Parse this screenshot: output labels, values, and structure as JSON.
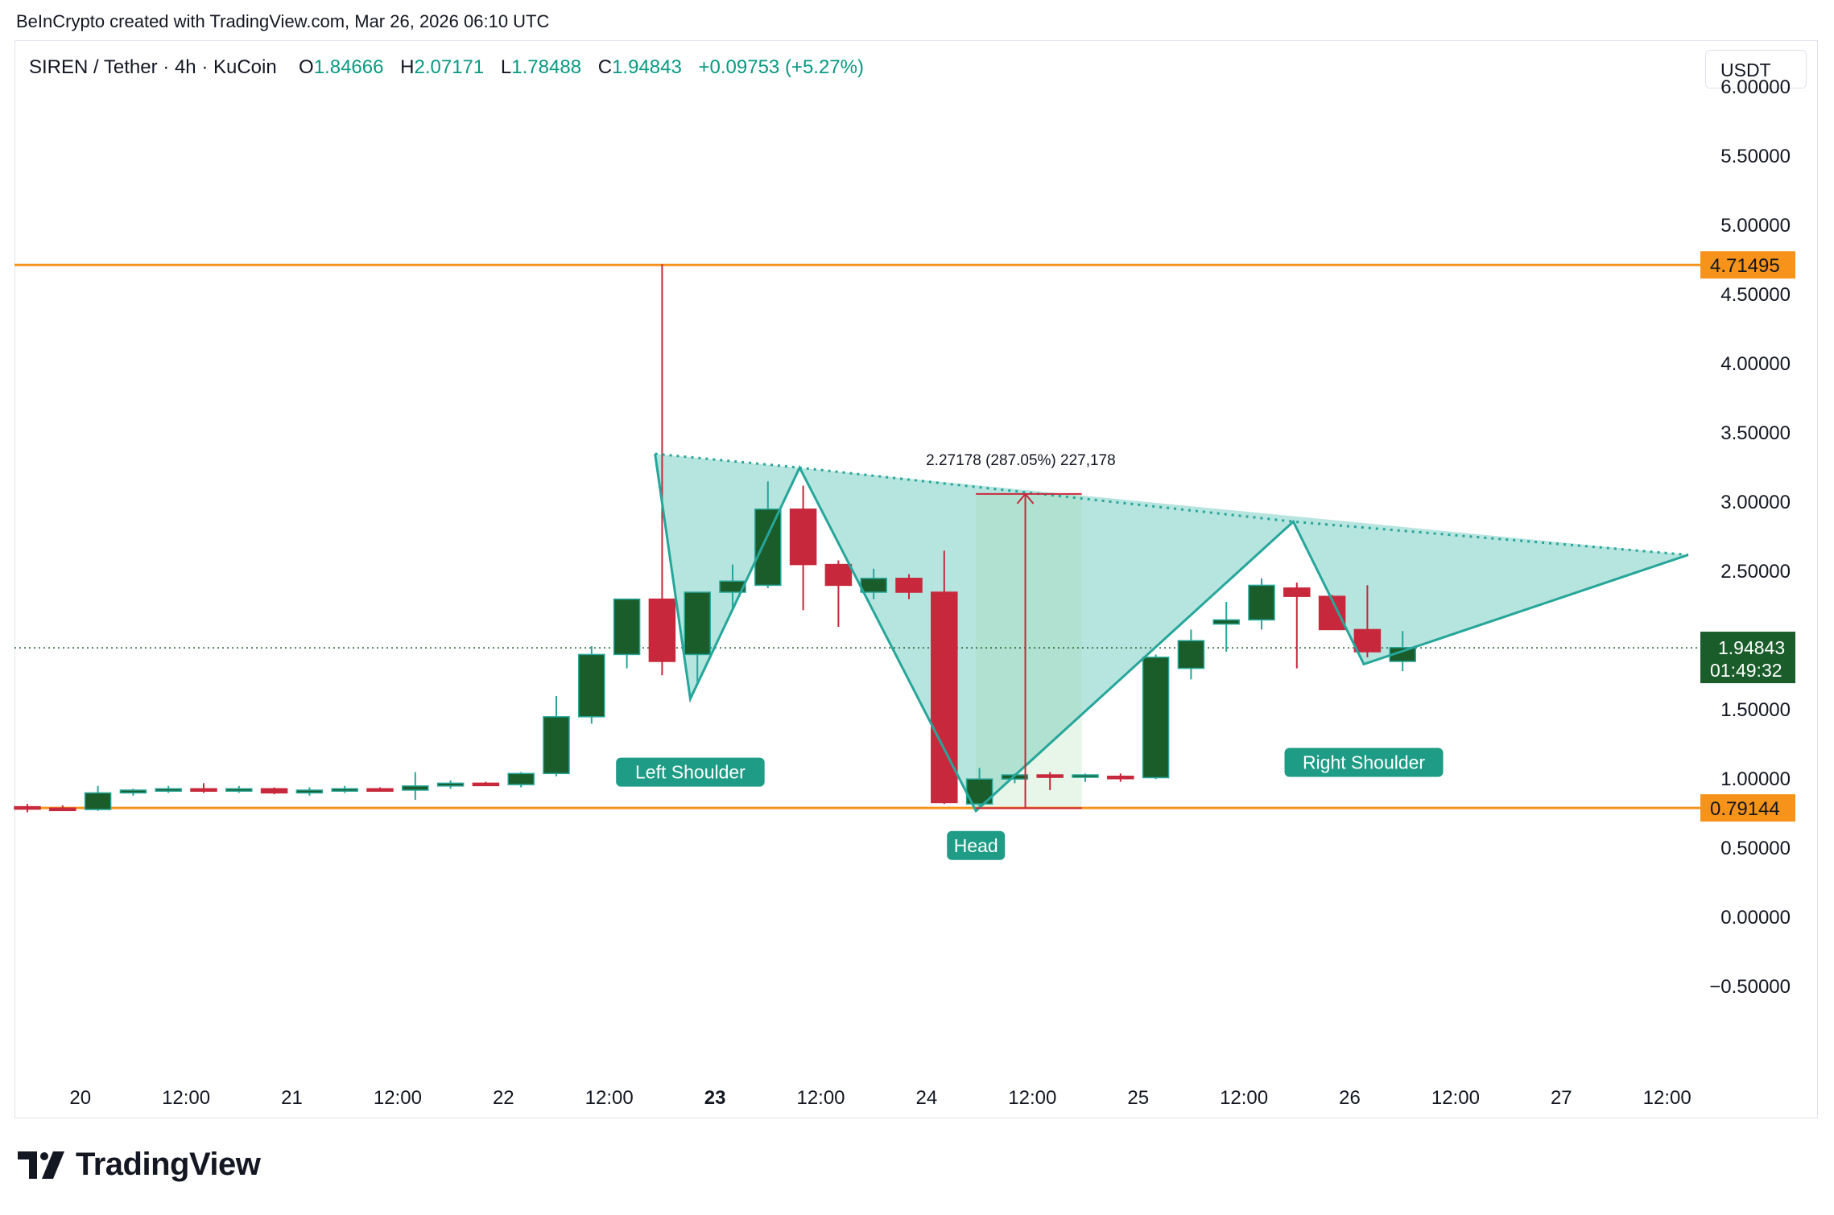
{
  "attribution": "BeInCrypto created with TradingView.com, Mar 26, 2026 06:10 UTC",
  "header": {
    "symbol": "SIREN / Tether · 4h · KuCoin",
    "open_label": "O",
    "open": "1.84666",
    "high_label": "H",
    "high": "2.07171",
    "low_label": "L",
    "low": "1.78488",
    "close_label": "C",
    "close": "1.94843",
    "change": "+0.09753 (+5.27%)"
  },
  "currency": "USDT",
  "logo_text": "TradingView",
  "colors": {
    "up": "#1a5c2a",
    "down": "#c8283c",
    "pattern_fill": "#b2e3dc",
    "pattern_line": "#26a69a",
    "level_line": "#f7931a",
    "price_label": "#1a5c2a"
  },
  "chart_data": {
    "type": "candlestick",
    "ylim": [
      -0.9,
      6.35
    ],
    "y_ticks": [
      "6.00000",
      "5.50000",
      "5.00000",
      "4.50000",
      "4.00000",
      "3.50000",
      "3.00000",
      "2.50000",
      "2.00000",
      "1.50000",
      "1.00000",
      "0.50000",
      "0.00000",
      "−0.50000"
    ],
    "y_tick_values": [
      6,
      5.5,
      5,
      4.5,
      4,
      3.5,
      3,
      2.5,
      2,
      1.5,
      1,
      0.5,
      0,
      -0.5
    ],
    "x_ticks": [
      {
        "label": "20",
        "i": 1.5,
        "bold": false
      },
      {
        "label": "12:00",
        "i": 4.5,
        "bold": false
      },
      {
        "label": "21",
        "i": 7.5,
        "bold": false
      },
      {
        "label": "12:00",
        "i": 10.5,
        "bold": false
      },
      {
        "label": "22",
        "i": 13.5,
        "bold": false
      },
      {
        "label": "12:00",
        "i": 16.5,
        "bold": false
      },
      {
        "label": "23",
        "i": 19.5,
        "bold": true
      },
      {
        "label": "12:00",
        "i": 22.5,
        "bold": false
      },
      {
        "label": "24",
        "i": 25.5,
        "bold": false
      },
      {
        "label": "12:00",
        "i": 28.5,
        "bold": false
      },
      {
        "label": "25",
        "i": 31.5,
        "bold": false
      },
      {
        "label": "12:00",
        "i": 34.5,
        "bold": false
      },
      {
        "label": "26",
        "i": 37.5,
        "bold": false
      },
      {
        "label": "12:00",
        "i": 40.5,
        "bold": false
      },
      {
        "label": "27",
        "i": 43.5,
        "bold": false
      },
      {
        "label": "12:00",
        "i": 46.5,
        "bold": false
      }
    ],
    "candles": [
      [
        0.8,
        0.82,
        0.76,
        0.79
      ],
      [
        0.79,
        0.81,
        0.77,
        0.78
      ],
      [
        0.78,
        0.95,
        0.77,
        0.9
      ],
      [
        0.9,
        0.93,
        0.88,
        0.92
      ],
      [
        0.92,
        0.95,
        0.9,
        0.93
      ],
      [
        0.93,
        0.97,
        0.9,
        0.92
      ],
      [
        0.92,
        0.95,
        0.9,
        0.93
      ],
      [
        0.93,
        0.94,
        0.89,
        0.9
      ],
      [
        0.9,
        0.94,
        0.88,
        0.92
      ],
      [
        0.92,
        0.95,
        0.9,
        0.93
      ],
      [
        0.93,
        0.94,
        0.91,
        0.92
      ],
      [
        0.92,
        1.05,
        0.85,
        0.95
      ],
      [
        0.95,
        0.99,
        0.93,
        0.97
      ],
      [
        0.97,
        0.98,
        0.95,
        0.96
      ],
      [
        0.96,
        1.05,
        0.94,
        1.04
      ],
      [
        1.04,
        1.6,
        1.02,
        1.45
      ],
      [
        1.45,
        1.96,
        1.4,
        1.9
      ],
      [
        1.9,
        2.3,
        1.8,
        2.3
      ],
      [
        2.3,
        4.72,
        1.75,
        1.85
      ],
      [
        1.9,
        2.35,
        1.7,
        2.35
      ],
      [
        2.35,
        2.55,
        2.22,
        2.43
      ],
      [
        2.4,
        3.15,
        2.38,
        2.95
      ],
      [
        2.95,
        3.12,
        2.22,
        2.55
      ],
      [
        2.55,
        2.58,
        2.1,
        2.4
      ],
      [
        2.35,
        2.52,
        2.3,
        2.45
      ],
      [
        2.45,
        2.48,
        2.3,
        2.35
      ],
      [
        2.35,
        2.65,
        0.82,
        0.83
      ],
      [
        0.82,
        1.08,
        0.8,
        1.0
      ],
      [
        1.0,
        1.04,
        0.97,
        1.03
      ],
      [
        1.03,
        1.05,
        0.92,
        1.02
      ],
      [
        1.02,
        1.04,
        0.98,
        1.03
      ],
      [
        1.02,
        1.04,
        0.98,
        1.01
      ],
      [
        1.01,
        1.9,
        1.0,
        1.88
      ],
      [
        1.8,
        2.08,
        1.72,
        2.0
      ],
      [
        2.12,
        2.28,
        1.92,
        2.15
      ],
      [
        2.15,
        2.45,
        2.08,
        2.4
      ],
      [
        2.38,
        2.42,
        1.8,
        2.32
      ],
      [
        2.32,
        2.33,
        2.08,
        2.08
      ],
      [
        2.08,
        2.4,
        1.88,
        1.92
      ],
      [
        1.85,
        2.07,
        1.78,
        1.95
      ]
    ],
    "pattern": {
      "label_left": "Left Shoulder",
      "label_head": "Head",
      "label_right": "Right Shoulder",
      "polyline": [
        [
          17.8,
          3.35
        ],
        [
          18.8,
          1.58
        ],
        [
          21.9,
          3.25
        ],
        [
          26.9,
          0.77
        ],
        [
          35.9,
          2.86
        ],
        [
          37.9,
          1.83
        ],
        [
          47.1,
          2.62
        ]
      ],
      "neckline": [
        [
          17.8,
          3.35
        ],
        [
          21.9,
          3.25
        ],
        [
          35.9,
          2.86
        ],
        [
          47.1,
          2.62
        ]
      ]
    },
    "measure": {
      "label": "2.27178 (287.05%) 227,178",
      "from_value": 0.79,
      "to_value": 3.06,
      "i_start": 26.9,
      "i_end": 29.9,
      "i_arrow": 28.3
    },
    "levels": [
      {
        "label": "4.71495",
        "value": 4.71495
      },
      {
        "label": "0.79144",
        "value": 0.79144
      }
    ],
    "current_price": {
      "label": "1.94843",
      "countdown": "01:49:32",
      "value": 1.94843
    }
  }
}
